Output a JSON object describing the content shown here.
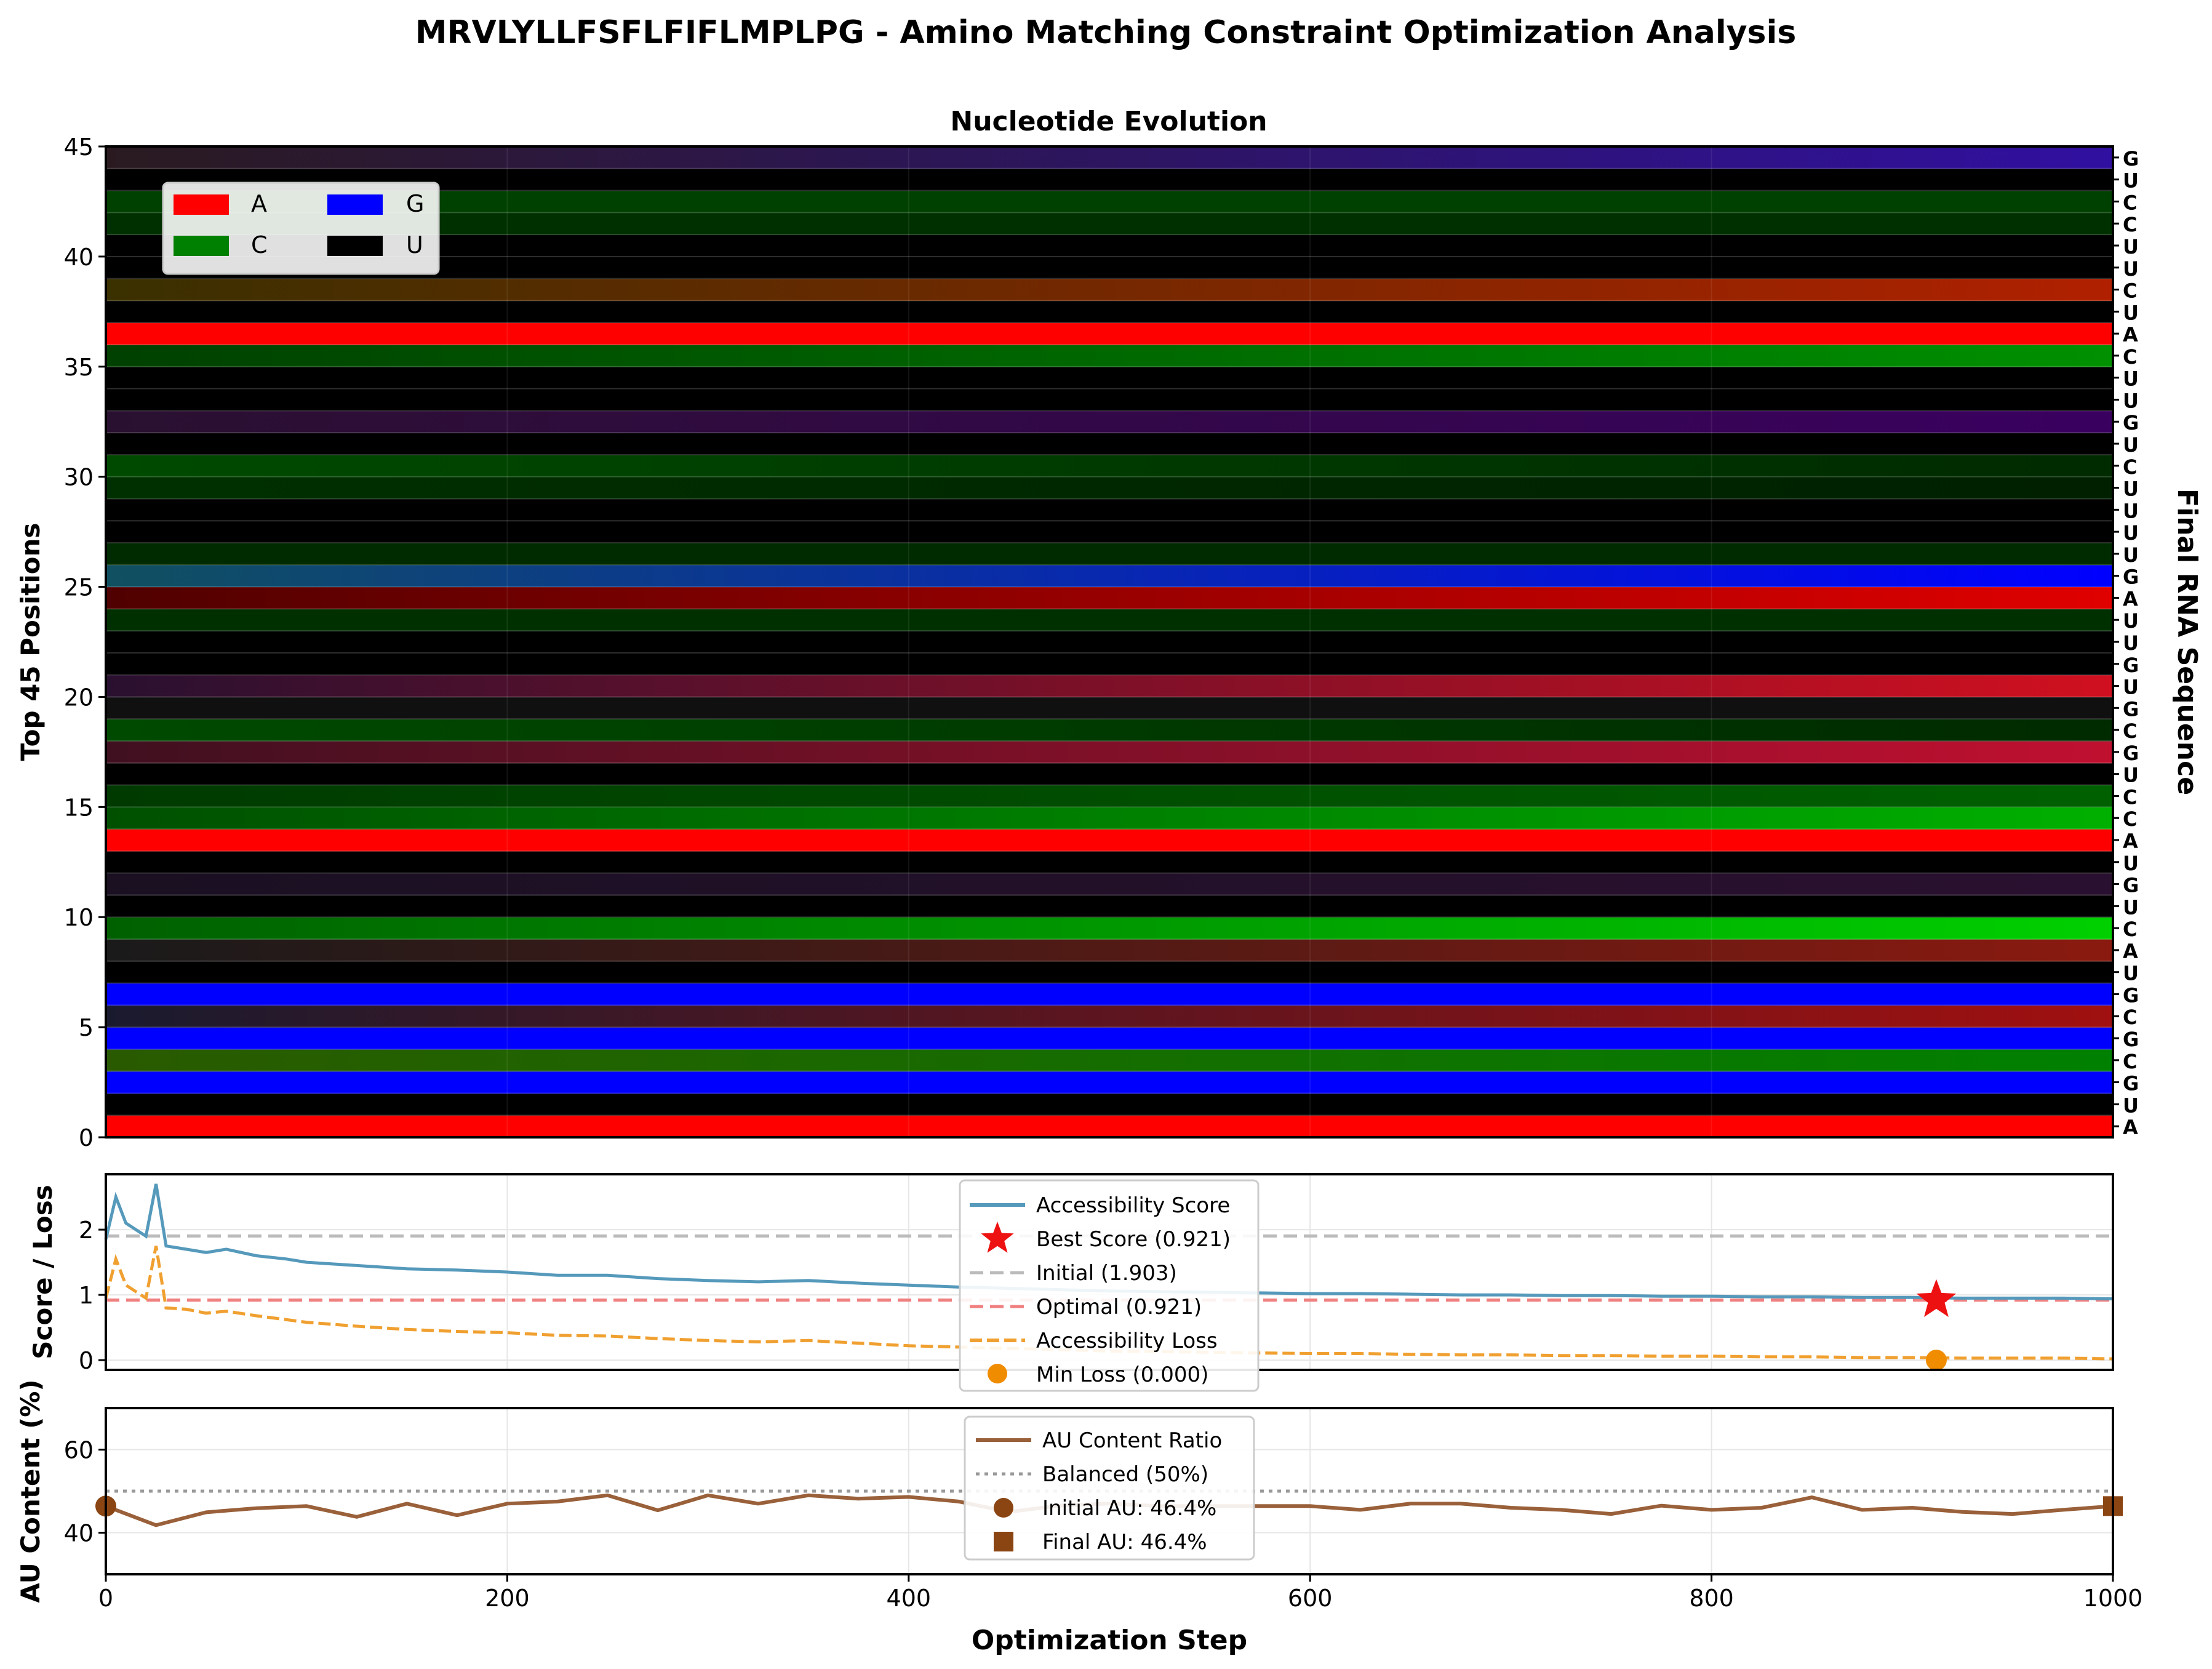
{
  "figure": {
    "title": "MRVLYLLFSFLFIFLMPLPG - Amino Matching Constraint Optimization Analysis"
  },
  "colors": {
    "A": "#ff0000",
    "C": "#008000",
    "G": "#0000ff",
    "U": "#000000",
    "score": "#5599bb",
    "loss": "#f0a030",
    "au": "#99603a",
    "best_star": "#ee1111",
    "min_dot": "#f08c00",
    "au_marker": "#8b4513",
    "initial_line": "#bbbbbb",
    "optimal_line": "#f08080",
    "balanced_line": "#999999"
  },
  "chart_data": [
    {
      "type": "heatmap",
      "title": "Nucleotide Evolution",
      "ylabel": "Top 45 Positions",
      "right_label": "Final RNA Sequence",
      "xlim": [
        0,
        1000
      ],
      "ylim": [
        0,
        45
      ],
      "yticks": [
        0,
        5,
        10,
        15,
        20,
        25,
        30,
        35,
        40,
        45
      ],
      "legend": {
        "position": "upper-left",
        "entries": [
          {
            "label": "A",
            "color": "#ff0000"
          },
          {
            "label": "G",
            "color": "#0000ff"
          },
          {
            "label": "C",
            "color": "#008000"
          },
          {
            "label": "U",
            "color": "#000000"
          }
        ]
      },
      "final_sequence": [
        "A",
        "U",
        "G",
        "C",
        "G",
        "C",
        "G",
        "U",
        "A",
        "C",
        "U",
        "G",
        "U",
        "A",
        "C",
        "C",
        "U",
        "G",
        "C",
        "G",
        "U",
        "G",
        "U",
        "U",
        "A",
        "G",
        "U",
        "U",
        "U",
        "U",
        "C",
        "U",
        "G",
        "U",
        "U",
        "C",
        "A",
        "U",
        "C",
        "U",
        "U",
        "C",
        "C",
        "U",
        "G"
      ],
      "row_colors": [
        {
          "start": "#ff0000",
          "end": "#ff0000"
        },
        {
          "start": "#000000",
          "end": "#000000"
        },
        {
          "start": "#0000ff",
          "end": "#0000ff"
        },
        {
          "start": "#2a5a00",
          "end": "#008000"
        },
        {
          "start": "#0000ff",
          "end": "#0000ff"
        },
        {
          "start": "#1a1a2e",
          "end": "#a01010"
        },
        {
          "start": "#0000ff",
          "end": "#0000ff"
        },
        {
          "start": "#000000",
          "end": "#000000"
        },
        {
          "start": "#1a1a1a",
          "end": "#8a1a10"
        },
        {
          "start": "#006000",
          "end": "#00d000"
        },
        {
          "start": "#000000",
          "end": "#000000"
        },
        {
          "start": "#1a1022",
          "end": "#2a1030"
        },
        {
          "start": "#000000",
          "end": "#000000"
        },
        {
          "start": "#ff0000",
          "end": "#ff0000"
        },
        {
          "start": "#005000",
          "end": "#00b000"
        },
        {
          "start": "#003a00",
          "end": "#006000"
        },
        {
          "start": "#000000",
          "end": "#000000"
        },
        {
          "start": "#401020",
          "end": "#c01030"
        },
        {
          "start": "#004a00",
          "end": "#002a00"
        },
        {
          "start": "#101010",
          "end": "#101010"
        },
        {
          "start": "#2a1030",
          "end": "#d01020"
        },
        {
          "start": "#000000",
          "end": "#000000"
        },
        {
          "start": "#000000",
          "end": "#000000"
        },
        {
          "start": "#003000",
          "end": "#003000"
        },
        {
          "start": "#500000",
          "end": "#e00000"
        },
        {
          "start": "#105060",
          "end": "#0000ff"
        },
        {
          "start": "#002a00",
          "end": "#002a00"
        },
        {
          "start": "#000000",
          "end": "#000000"
        },
        {
          "start": "#000000",
          "end": "#000000"
        },
        {
          "start": "#003000",
          "end": "#002000"
        },
        {
          "start": "#004a00",
          "end": "#002a00"
        },
        {
          "start": "#000000",
          "end": "#000000"
        },
        {
          "start": "#2a1030",
          "end": "#3a0060"
        },
        {
          "start": "#000000",
          "end": "#000000"
        },
        {
          "start": "#000000",
          "end": "#000000"
        },
        {
          "start": "#004000",
          "end": "#009000"
        },
        {
          "start": "#ff0000",
          "end": "#ff0000"
        },
        {
          "start": "#000000",
          "end": "#000000"
        },
        {
          "start": "#3a3000",
          "end": "#b02000"
        },
        {
          "start": "#000000",
          "end": "#000000"
        },
        {
          "start": "#000000",
          "end": "#000000"
        },
        {
          "start": "#003000",
          "end": "#003000"
        },
        {
          "start": "#004000",
          "end": "#004000"
        },
        {
          "start": "#000000",
          "end": "#000000"
        },
        {
          "start": "#2a1a20",
          "end": "#3010a0"
        }
      ]
    },
    {
      "type": "line",
      "ylabel": "Score / Loss",
      "xlim": [
        0,
        1000
      ],
      "ylim": [
        -0.15,
        2.85
      ],
      "yticks": [
        0,
        1,
        2
      ],
      "legend": {
        "position": "upper-center",
        "entries": [
          "Accessibility Score",
          "Best Score (0.921)",
          "Initial (1.903)",
          "Optimal (0.921)",
          "Accessibility Loss",
          "Min Loss (0.000)"
        ]
      },
      "initial_score": 1.903,
      "optimal_score": 0.921,
      "best_point": {
        "x": 912,
        "y": 0.921
      },
      "min_loss_point": {
        "x": 912,
        "y": 0.0
      },
      "series": [
        {
          "name": "Accessibility Score",
          "x": [
            0,
            5,
            10,
            15,
            20,
            25,
            30,
            40,
            50,
            60,
            75,
            90,
            100,
            125,
            150,
            175,
            200,
            225,
            250,
            275,
            300,
            325,
            350,
            375,
            400,
            425,
            450,
            475,
            500,
            525,
            550,
            575,
            600,
            625,
            650,
            675,
            700,
            725,
            750,
            775,
            800,
            825,
            850,
            875,
            900,
            925,
            950,
            975,
            1000
          ],
          "values": [
            1.85,
            2.5,
            2.1,
            2.0,
            1.9,
            2.7,
            1.75,
            1.7,
            1.65,
            1.7,
            1.6,
            1.55,
            1.5,
            1.45,
            1.4,
            1.38,
            1.35,
            1.3,
            1.3,
            1.25,
            1.22,
            1.2,
            1.22,
            1.18,
            1.15,
            1.12,
            1.1,
            1.08,
            1.06,
            1.05,
            1.04,
            1.03,
            1.02,
            1.02,
            1.01,
            1.0,
            1.0,
            0.99,
            0.99,
            0.98,
            0.98,
            0.97,
            0.97,
            0.96,
            0.96,
            0.95,
            0.95,
            0.95,
            0.94
          ]
        },
        {
          "name": "Accessibility Loss",
          "x": [
            0,
            5,
            10,
            15,
            20,
            25,
            30,
            40,
            50,
            60,
            75,
            90,
            100,
            125,
            150,
            175,
            200,
            225,
            250,
            275,
            300,
            325,
            350,
            375,
            400,
            425,
            450,
            475,
            500,
            525,
            550,
            575,
            600,
            625,
            650,
            675,
            700,
            725,
            750,
            775,
            800,
            825,
            850,
            875,
            900,
            925,
            950,
            975,
            1000
          ],
          "values": [
            0.95,
            1.55,
            1.15,
            1.05,
            0.95,
            1.75,
            0.8,
            0.78,
            0.72,
            0.75,
            0.68,
            0.62,
            0.58,
            0.52,
            0.47,
            0.44,
            0.42,
            0.38,
            0.37,
            0.33,
            0.3,
            0.28,
            0.3,
            0.26,
            0.22,
            0.2,
            0.18,
            0.16,
            0.14,
            0.13,
            0.12,
            0.11,
            0.1,
            0.1,
            0.09,
            0.08,
            0.08,
            0.07,
            0.07,
            0.06,
            0.06,
            0.05,
            0.05,
            0.04,
            0.04,
            0.03,
            0.03,
            0.03,
            0.02
          ]
        }
      ]
    },
    {
      "type": "line",
      "xlabel": "Optimization Step",
      "ylabel": "AU Content (%)",
      "xlim": [
        0,
        1000
      ],
      "ylim": [
        30,
        70
      ],
      "xticks": [
        0,
        200,
        400,
        600,
        800,
        1000
      ],
      "yticks": [
        40,
        60
      ],
      "legend": {
        "position": "upper-center",
        "entries": [
          "AU Content Ratio",
          "Balanced (50%)",
          "Initial AU: 46.4%",
          "Final AU: 46.4%"
        ]
      },
      "balanced": 50,
      "initial_point": {
        "x": 0,
        "y": 46.4
      },
      "final_point": {
        "x": 1000,
        "y": 46.4
      },
      "series": [
        {
          "name": "AU Content Ratio",
          "x": [
            0,
            25,
            50,
            75,
            100,
            125,
            150,
            175,
            200,
            225,
            250,
            275,
            300,
            325,
            350,
            375,
            400,
            425,
            450,
            475,
            500,
            525,
            550,
            575,
            600,
            625,
            650,
            675,
            700,
            725,
            750,
            775,
            800,
            825,
            850,
            875,
            900,
            925,
            950,
            975,
            1000
          ],
          "values": [
            46.4,
            41.8,
            44.9,
            45.9,
            46.4,
            43.8,
            47.0,
            44.2,
            47.0,
            47.5,
            49.0,
            45.4,
            49.0,
            47.0,
            49.0,
            48.2,
            48.6,
            47.5,
            45.0,
            46.5,
            47.0,
            46.4,
            46.4,
            46.4,
            46.4,
            45.5,
            47.0,
            47.0,
            46.0,
            45.5,
            44.5,
            46.5,
            45.5,
            46.0,
            48.5,
            45.5,
            46.0,
            45.0,
            44.5,
            45.5,
            46.4
          ]
        }
      ]
    }
  ]
}
